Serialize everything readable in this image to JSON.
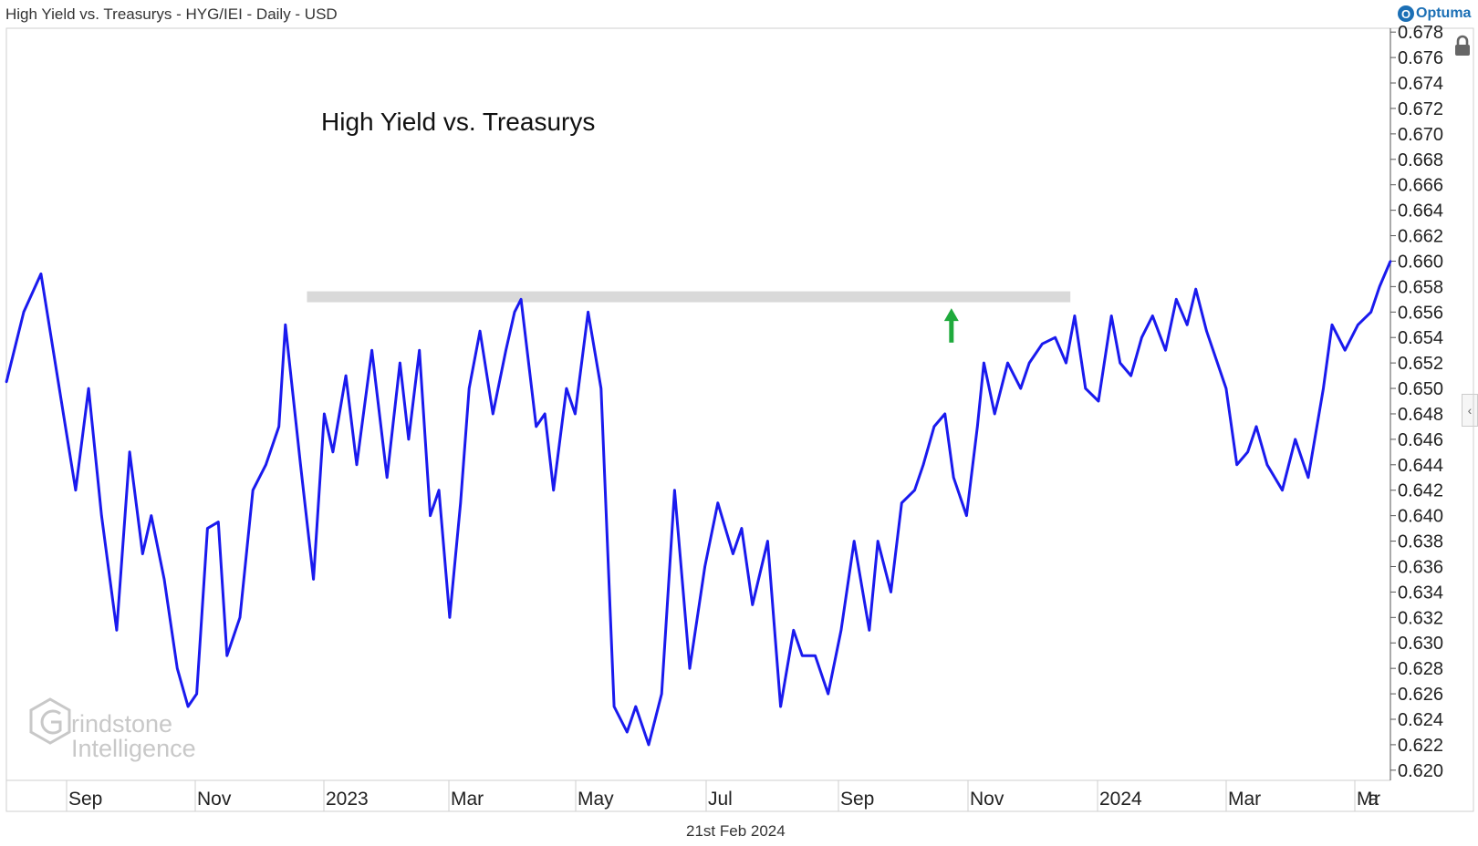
{
  "header": {
    "title": "High Yield vs. Treasurys - HYG/IEI - Daily - USD"
  },
  "brand": {
    "mark": "O",
    "name": "Optuma"
  },
  "footer": {
    "date": "21st Feb 2024"
  },
  "watermark": {
    "line1": "rindstone",
    "line2": "Intelligence"
  },
  "icons": {
    "lock": "lock-icon",
    "collapse": "chevron-left-icon"
  },
  "colors": {
    "line": "#1a1aee",
    "band": "#d9d9d9",
    "arrow": "#1faa3c",
    "watermark": "#c8c8c8"
  },
  "chart_data": {
    "type": "line",
    "title": "High Yield vs. Treasurys",
    "xlabel": "",
    "ylabel": "",
    "x_ticks": [
      "Sep",
      "Nov",
      "2023",
      "Mar",
      "May",
      "Jul",
      "Sep",
      "Nov",
      "2024",
      "Mar",
      "Mar"
    ],
    "y_ticks": [
      "0.620",
      "0.622",
      "0.624",
      "0.626",
      "0.628",
      "0.630",
      "0.632",
      "0.634",
      "0.636",
      "0.638",
      "0.640",
      "0.642",
      "0.644",
      "0.646",
      "0.648",
      "0.650",
      "0.652",
      "0.654",
      "0.656",
      "0.658",
      "0.660",
      "0.662",
      "0.664",
      "0.666",
      "0.668",
      "0.670",
      "0.672",
      "0.674",
      "0.676",
      "0.678"
    ],
    "ylim": [
      0.6192,
      0.6783
    ],
    "xlim": [
      "2022-07-11",
      "2024-04-11"
    ],
    "grid": false,
    "series": [
      {
        "values": [
          [
            "2022-07-11",
            0.6505
          ],
          [
            "2022-07-19",
            0.656
          ],
          [
            "2022-07-27",
            0.659
          ],
          [
            "2022-08-04",
            0.6505
          ],
          [
            "2022-08-12",
            0.642
          ],
          [
            "2022-08-18",
            0.65
          ],
          [
            "2022-08-24",
            0.64
          ],
          [
            "2022-08-31",
            0.631
          ],
          [
            "2022-09-06",
            0.645
          ],
          [
            "2022-09-12",
            0.637
          ],
          [
            "2022-09-16",
            0.64
          ],
          [
            "2022-09-22",
            0.635
          ],
          [
            "2022-09-28",
            0.628
          ],
          [
            "2022-10-03",
            0.625
          ],
          [
            "2022-10-07",
            0.626
          ],
          [
            "2022-10-12",
            0.639
          ],
          [
            "2022-10-17",
            0.6395
          ],
          [
            "2022-10-21",
            0.629
          ],
          [
            "2022-10-27",
            0.632
          ],
          [
            "2022-11-02",
            0.642
          ],
          [
            "2022-11-08",
            0.644
          ],
          [
            "2022-11-14",
            0.647
          ],
          [
            "2022-11-17",
            0.655
          ],
          [
            "2022-11-24",
            0.644
          ],
          [
            "2022-11-30",
            0.635
          ],
          [
            "2022-12-05",
            0.648
          ],
          [
            "2022-12-09",
            0.645
          ],
          [
            "2022-12-15",
            0.651
          ],
          [
            "2022-12-20",
            0.644
          ],
          [
            "2022-12-27",
            0.653
          ],
          [
            "2023-01-03",
            0.643
          ],
          [
            "2023-01-09",
            0.652
          ],
          [
            "2023-01-13",
            0.646
          ],
          [
            "2023-01-18",
            0.653
          ],
          [
            "2023-01-23",
            0.64
          ],
          [
            "2023-01-27",
            0.642
          ],
          [
            "2023-02-01",
            0.632
          ],
          [
            "2023-02-06",
            0.641
          ],
          [
            "2023-02-10",
            0.65
          ],
          [
            "2023-02-15",
            0.6545
          ],
          [
            "2023-02-21",
            0.648
          ],
          [
            "2023-02-27",
            0.653
          ],
          [
            "2023-03-03",
            0.656
          ],
          [
            "2023-03-06",
            0.657
          ],
          [
            "2023-03-13",
            0.647
          ],
          [
            "2023-03-17",
            0.648
          ],
          [
            "2023-03-21",
            0.642
          ],
          [
            "2023-03-27",
            0.65
          ],
          [
            "2023-03-31",
            0.648
          ],
          [
            "2023-04-06",
            0.656
          ],
          [
            "2023-04-12",
            0.65
          ],
          [
            "2023-04-18",
            0.625
          ],
          [
            "2023-04-24",
            0.623
          ],
          [
            "2023-04-28",
            0.625
          ],
          [
            "2023-05-04",
            0.622
          ],
          [
            "2023-05-10",
            0.626
          ],
          [
            "2023-05-16",
            0.642
          ],
          [
            "2023-05-23",
            0.628
          ],
          [
            "2023-05-30",
            0.636
          ],
          [
            "2023-06-05",
            0.641
          ],
          [
            "2023-06-12",
            0.637
          ],
          [
            "2023-06-16",
            0.639
          ],
          [
            "2023-06-21",
            0.633
          ],
          [
            "2023-06-28",
            0.638
          ],
          [
            "2023-07-04",
            0.625
          ],
          [
            "2023-07-10",
            0.631
          ],
          [
            "2023-07-14",
            0.629
          ],
          [
            "2023-07-20",
            0.629
          ],
          [
            "2023-07-26",
            0.626
          ],
          [
            "2023-08-01",
            0.631
          ],
          [
            "2023-08-07",
            0.638
          ],
          [
            "2023-08-14",
            0.631
          ],
          [
            "2023-08-18",
            0.638
          ],
          [
            "2023-08-24",
            0.634
          ],
          [
            "2023-08-29",
            0.641
          ],
          [
            "2023-09-04",
            0.642
          ],
          [
            "2023-09-08",
            0.644
          ],
          [
            "2023-09-13",
            0.647
          ],
          [
            "2023-09-18",
            0.648
          ],
          [
            "2023-09-22",
            0.643
          ],
          [
            "2023-09-28",
            0.64
          ],
          [
            "2023-10-03",
            0.647
          ],
          [
            "2023-10-06",
            0.652
          ],
          [
            "2023-10-11",
            0.648
          ],
          [
            "2023-10-17",
            0.652
          ],
          [
            "2023-10-23",
            0.65
          ],
          [
            "2023-10-27",
            0.652
          ],
          [
            "2023-11-02",
            0.6535
          ],
          [
            "2023-11-08",
            0.654
          ],
          [
            "2023-11-13",
            0.652
          ],
          [
            "2023-11-17",
            0.6557
          ],
          [
            "2023-11-22",
            0.65
          ],
          [
            "2023-11-28",
            0.649
          ],
          [
            "2023-12-04",
            0.6557
          ],
          [
            "2023-12-08",
            0.652
          ],
          [
            "2023-12-13",
            0.651
          ],
          [
            "2023-12-18",
            0.654
          ],
          [
            "2023-12-23",
            0.6557
          ],
          [
            "2023-12-29",
            0.653
          ],
          [
            "2024-01-03",
            0.657
          ],
          [
            "2024-01-08",
            0.655
          ],
          [
            "2024-01-12",
            0.6578
          ],
          [
            "2024-01-17",
            0.6545
          ],
          [
            "2024-01-22",
            0.652
          ],
          [
            "2024-01-26",
            0.65
          ],
          [
            "2024-01-31",
            0.644
          ],
          [
            "2024-02-05",
            0.645
          ],
          [
            "2024-02-09",
            0.647
          ],
          [
            "2024-02-14",
            0.644
          ],
          [
            "2024-02-21",
            0.642
          ],
          [
            "2024-02-27",
            0.646
          ],
          [
            "2024-03-04",
            0.643
          ],
          [
            "2024-03-11",
            0.65
          ],
          [
            "2024-03-15",
            0.655
          ],
          [
            "2024-03-21",
            0.653
          ],
          [
            "2024-03-27",
            0.655
          ],
          [
            "2024-04-02",
            0.656
          ],
          [
            "2024-04-06",
            0.658
          ],
          [
            "2024-04-11",
            0.66
          ]
        ]
      }
    ],
    "annotations": {
      "resistance_band": {
        "x_from": "2022-11-27",
        "x_to": "2023-11-15",
        "y": 0.6572
      },
      "arrow": {
        "x": "2023-09-21",
        "y_from": 0.6536,
        "y_to": 0.6563,
        "direction": "up"
      }
    },
    "subtitle": ""
  }
}
